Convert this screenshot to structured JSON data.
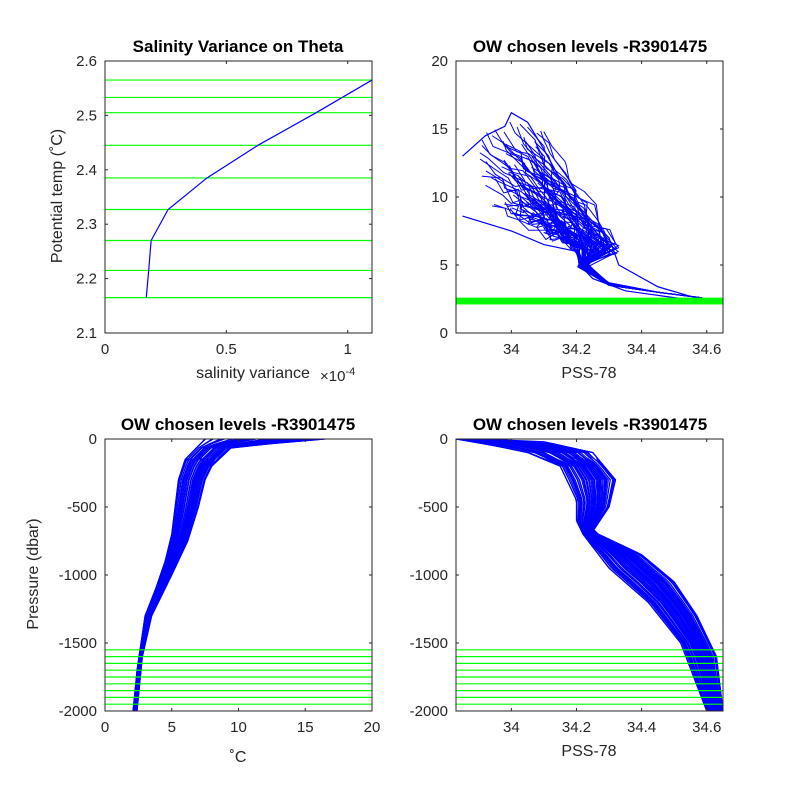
{
  "colors": {
    "data": "#0000ff",
    "levels": "#00ff00",
    "axis": "#262626"
  },
  "chart_data": [
    {
      "type": "line",
      "title": "Salinity Variance on Theta",
      "xlabel": "salinity variance",
      "x_exponent": "×10",
      "x_exponent_power": "-4",
      "ylabel": "Potential temp (˚C)",
      "xlim": [
        0,
        1.1
      ],
      "ylim": [
        2.1,
        2.6
      ],
      "xticks": [
        0,
        0.5,
        1
      ],
      "xtick_labels": [
        "0",
        "0.5",
        "1"
      ],
      "yticks": [
        2.1,
        2.2,
        2.3,
        2.4,
        2.5,
        2.6
      ],
      "ytick_labels": [
        "2.1",
        "2.2",
        "2.3",
        "2.4",
        "2.5",
        "2.6"
      ],
      "series": [
        {
          "x": [
            0.17,
            0.18,
            0.19,
            0.26,
            0.42,
            0.63,
            0.87,
            1.1
          ],
          "y": [
            2.165,
            2.215,
            2.27,
            2.327,
            2.385,
            2.445,
            2.505,
            2.565
          ]
        }
      ],
      "hlines": [
        2.165,
        2.215,
        2.27,
        2.327,
        2.385,
        2.445,
        2.505,
        2.533,
        2.565
      ]
    },
    {
      "type": "line",
      "title": "OW chosen levels -R3901475",
      "xlabel": "PSS-78",
      "ylabel": "",
      "xlim": [
        33.83,
        34.65
      ],
      "ylim": [
        0,
        20
      ],
      "xticks": [
        34,
        34.2,
        34.4,
        34.6
      ],
      "xtick_labels": [
        "34",
        "34.2",
        "34.4",
        "34.6"
      ],
      "yticks": [
        0,
        5,
        10,
        15,
        20
      ],
      "ytick_labels": [
        "0",
        "5",
        "10",
        "15",
        "20"
      ],
      "envelope_outer": {
        "x": [
          33.85,
          33.92,
          33.98,
          34.0,
          34.05,
          34.1,
          34.18,
          34.25,
          34.3,
          34.33,
          34.45,
          34.55,
          34.62
        ],
        "y": [
          13.0,
          14.5,
          15.2,
          16.2,
          15.5,
          13.5,
          10.0,
          8.2,
          7.0,
          5.0,
          3.4,
          2.7,
          2.3
        ]
      },
      "envelope_inner": {
        "x": [
          33.85,
          34.0,
          34.1,
          34.2,
          34.21,
          34.25,
          34.35,
          34.5,
          34.62
        ],
        "y": [
          8.6,
          7.5,
          6.5,
          6.0,
          5.0,
          4.0,
          3.1,
          2.6,
          2.2
        ]
      },
      "band_y": [
        2.1,
        2.6
      ]
    },
    {
      "type": "line",
      "title": "OW chosen levels -R3901475",
      "xlabel": "˚C",
      "ylabel": "Pressure (dbar)",
      "xlim": [
        0,
        20
      ],
      "ylim": [
        -2000,
        0
      ],
      "xticks": [
        0,
        5,
        10,
        15,
        20
      ],
      "xtick_labels": [
        "0",
        "5",
        "10",
        "15",
        "20"
      ],
      "yticks": [
        -2000,
        -1500,
        -1000,
        -500,
        0
      ],
      "ytick_labels": [
        "-2000",
        "-1500",
        "-1000",
        "-500",
        "0"
      ],
      "profile_left": {
        "x": [
          7.5,
          7.0,
          6.0,
          5.5,
          5.0,
          4.5,
          3.8,
          3.0,
          2.7,
          2.4,
          2.1
        ],
        "y": [
          0,
          -50,
          -150,
          -300,
          -700,
          -900,
          -1100,
          -1300,
          -1500,
          -1700,
          -2000
        ]
      },
      "profile_right": {
        "x": [
          16.5,
          13.0,
          9.5,
          8.0,
          7.5,
          7.0,
          6.2,
          5.0,
          3.5,
          2.8,
          2.4
        ],
        "y": [
          0,
          -30,
          -60,
          -200,
          -300,
          -500,
          -750,
          -1000,
          -1300,
          -1600,
          -2000
        ]
      },
      "hlines": [
        -1550,
        -1600,
        -1650,
        -1700,
        -1750,
        -1800,
        -1850,
        -1900,
        -1950
      ]
    },
    {
      "type": "line",
      "title": "OW chosen levels -R3901475",
      "xlabel": "PSS-78",
      "ylabel": "",
      "xlim": [
        33.83,
        34.65
      ],
      "ylim": [
        -2000,
        0
      ],
      "xticks": [
        34,
        34.2,
        34.4,
        34.6
      ],
      "xtick_labels": [
        "34",
        "34.2",
        "34.4",
        "34.6"
      ],
      "yticks": [
        -2000,
        -1500,
        -1000,
        -500,
        0
      ],
      "ytick_labels": [
        "-2000",
        "-1500",
        "-1000",
        "-500",
        "0"
      ],
      "profile_left": {
        "x": [
          33.83,
          33.95,
          34.05,
          34.15,
          34.2,
          34.2,
          34.22,
          34.3,
          34.42,
          34.52,
          34.6
        ],
        "y": [
          0,
          -50,
          -100,
          -200,
          -450,
          -600,
          -700,
          -950,
          -1200,
          -1500,
          -2000
        ]
      },
      "profile_right": {
        "x": [
          33.9,
          34.1,
          34.25,
          34.32,
          34.3,
          34.25,
          34.4,
          34.5,
          34.57,
          34.63,
          34.65
        ],
        "y": [
          0,
          -20,
          -100,
          -300,
          -500,
          -680,
          -850,
          -1050,
          -1300,
          -1600,
          -2000
        ]
      },
      "hlines": [
        -1550,
        -1600,
        -1650,
        -1700,
        -1750,
        -1800,
        -1850,
        -1900,
        -1950
      ]
    }
  ]
}
